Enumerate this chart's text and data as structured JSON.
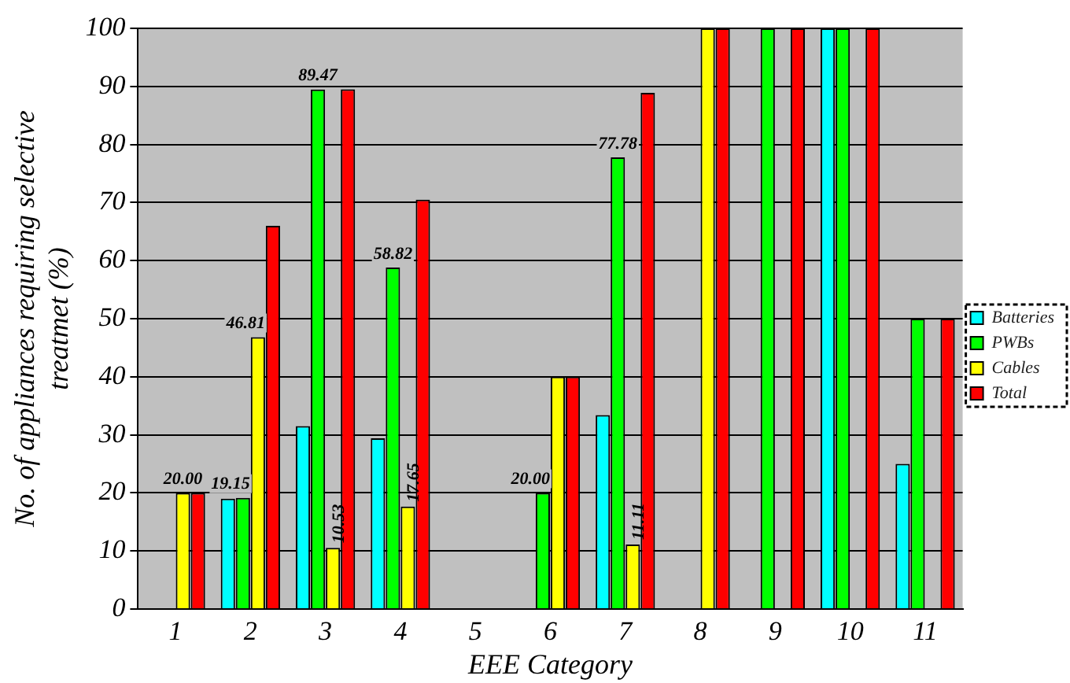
{
  "chart_data": {
    "type": "bar",
    "xlabel": "EEE Category",
    "ylabel": "No. of appliances requiring selective treatmet (%)",
    "categories": [
      "1",
      "2",
      "3",
      "4",
      "5",
      "6",
      "7",
      "8",
      "9",
      "10",
      "11"
    ],
    "series": [
      {
        "name": "Batteries",
        "color": "#00ffff",
        "values": [
          null,
          19,
          31.5,
          29.4,
          null,
          null,
          33.4,
          null,
          null,
          100,
          25
        ],
        "value_labels": [
          null,
          null,
          null,
          null,
          null,
          null,
          null,
          null,
          null,
          null,
          null
        ]
      },
      {
        "name": "PWBs",
        "color": "#00ff00",
        "values": [
          null,
          19.15,
          89.47,
          58.82,
          null,
          20,
          77.78,
          null,
          100,
          100,
          50
        ],
        "value_labels": [
          null,
          "19.15",
          "89.47",
          "58.82",
          null,
          "20.00",
          "77.78",
          null,
          null,
          null,
          null
        ]
      },
      {
        "name": "Cables",
        "color": "#ffff00",
        "values": [
          20,
          46.81,
          10.53,
          17.65,
          null,
          40,
          11.11,
          100,
          null,
          null,
          null
        ],
        "value_labels": [
          "20.00",
          "46.81",
          "10.53",
          "17.65",
          null,
          null,
          "11.11",
          null,
          null,
          null,
          null
        ]
      },
      {
        "name": "Total",
        "color": "#ff0000",
        "values": [
          20,
          66,
          89.5,
          70.5,
          null,
          40,
          88.9,
          100,
          100,
          100,
          50
        ]
      }
    ],
    "ylim": [
      0,
      100
    ],
    "yticks": [
      0,
      10,
      20,
      30,
      40,
      50,
      60,
      70,
      80,
      90,
      100
    ],
    "grid": "y",
    "legend": "right"
  }
}
